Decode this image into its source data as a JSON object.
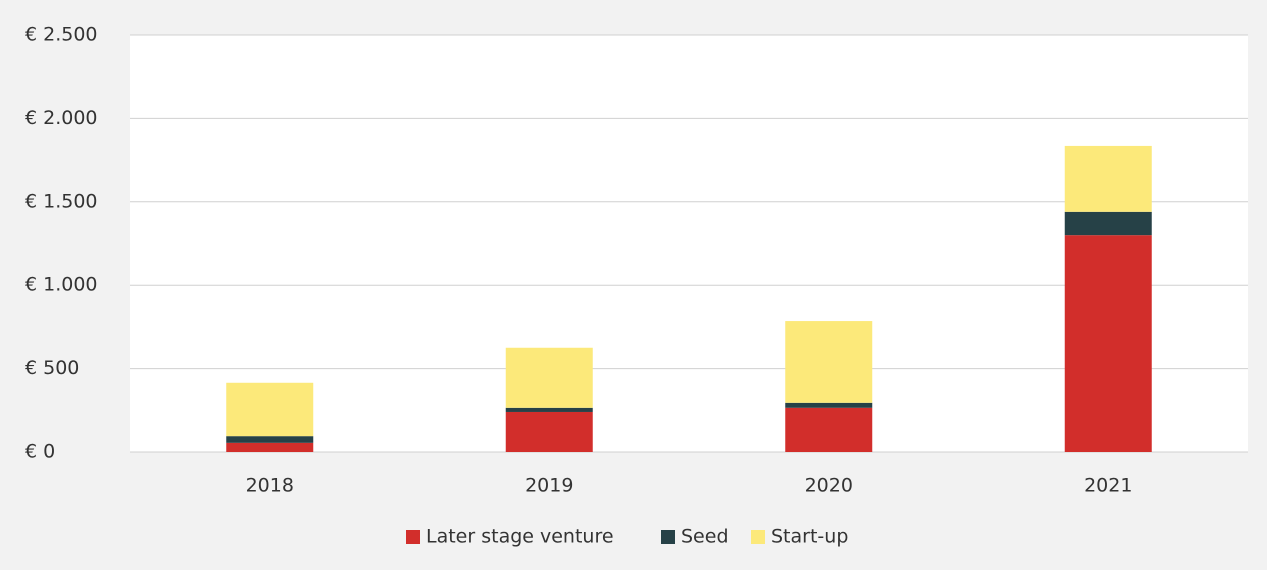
{
  "chart_data": {
    "type": "stacked_bar",
    "categories": [
      "2018",
      "2019",
      "2020",
      "2021"
    ],
    "series": [
      {
        "name": "Later stage venture",
        "color": "#d22e2b",
        "values": [
          55,
          240,
          265,
          1300
        ]
      },
      {
        "name": "Seed",
        "color": "#264147",
        "values": [
          40,
          25,
          30,
          140
        ]
      },
      {
        "name": "Start-up",
        "color": "#fce97a",
        "values": [
          320,
          360,
          490,
          395
        ]
      }
    ],
    "ylim": [
      0,
      2500
    ],
    "yticks": [
      {
        "value": 0,
        "label": "€ 0"
      },
      {
        "value": 500,
        "label": "€ 500"
      },
      {
        "value": 1000,
        "label": "€ 1.000"
      },
      {
        "value": 1500,
        "label": "€ 1.500"
      },
      {
        "value": 2000,
        "label": "€ 2.000"
      },
      {
        "value": 2500,
        "label": "€ 2.500"
      }
    ],
    "grid": true,
    "legend": "bottom"
  }
}
